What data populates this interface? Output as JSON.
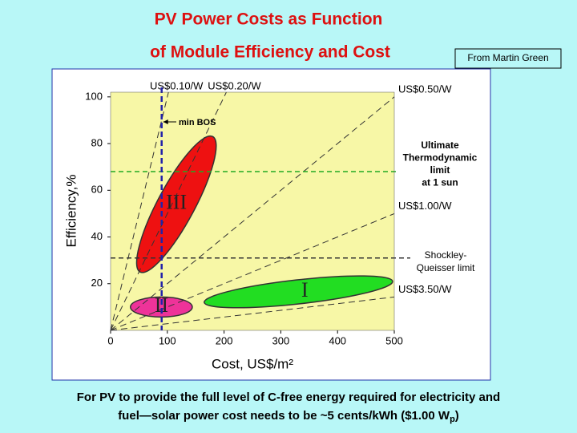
{
  "chart_data": {
    "type": "cost-efficiency",
    "title": [
      "PV Power Costs as Function",
      "of Module Efficiency and Cost"
    ],
    "source": "From Martin Green",
    "x_label": "Cost, US$/m²",
    "y_label": "Efficiency,%",
    "xlim": [
      0,
      500
    ],
    "xticks": [
      0,
      100,
      200,
      300,
      400,
      500
    ],
    "ylim": [
      0,
      102
    ],
    "yticks": [
      20,
      40,
      60,
      80,
      100
    ],
    "cost_lines": [
      {
        "value": 0.1,
        "label": "US$0.10/W"
      },
      {
        "value": 0.2,
        "label": "US$0.20/W"
      },
      {
        "value": 0.5,
        "label": "US$0.50/W"
      },
      {
        "value": 1.0,
        "label": "US$1.00/W"
      },
      {
        "value": 3.5,
        "label": "US$3.50/W"
      }
    ],
    "limits": [
      {
        "name": [
          "Ultimate",
          "Thermodynamic",
          "limit",
          "at 1 sun"
        ],
        "value": 68,
        "color": "#22aa22"
      },
      {
        "name": [
          "Shockley-",
          "Queisser limit"
        ],
        "value": 31,
        "color": "#333333"
      }
    ],
    "min_bos": {
      "name": "min BOS",
      "value": 90,
      "color": "#2222aa"
    },
    "regions": [
      {
        "label": "I",
        "color": "#22dd22",
        "from": [
          165,
          12
        ],
        "to": [
          497,
          21
        ]
      },
      {
        "label": "II",
        "color": "#ee3399",
        "from": [
          35,
          10
        ],
        "to": [
          144,
          10
        ]
      },
      {
        "label": "III",
        "color": "#ee1111",
        "from": [
          52,
          25
        ],
        "to": [
          180,
          83
        ]
      }
    ],
    "footer": [
      "For PV to provide the full level of C-free energy required for electricity and",
      "fuel—solar power cost needs to be ~5 cents/kWh ($1.00 W",
      "p",
      ")"
    ]
  }
}
